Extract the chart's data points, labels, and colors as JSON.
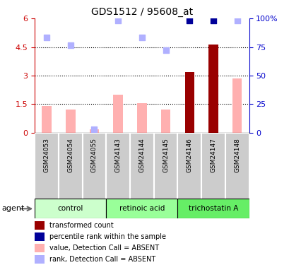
{
  "title": "GDS1512 / 95608_at",
  "samples": [
    "GSM24053",
    "GSM24054",
    "GSM24055",
    "GSM24143",
    "GSM24144",
    "GSM24145",
    "GSM24146",
    "GSM24147",
    "GSM24148"
  ],
  "groups": [
    {
      "name": "control",
      "color": "#ccffcc",
      "start": 0,
      "end": 3
    },
    {
      "name": "retinoic acid",
      "color": "#99ff99",
      "start": 3,
      "end": 6
    },
    {
      "name": "trichostatin A",
      "color": "#66ee66",
      "start": 6,
      "end": 9
    }
  ],
  "bar_values": [
    1.4,
    1.2,
    0.15,
    2.0,
    1.55,
    1.2,
    3.2,
    4.65,
    2.85
  ],
  "bar_colors": [
    "#ffb0b0",
    "#ffb0b0",
    "#ffb0b0",
    "#ffb0b0",
    "#ffb0b0",
    "#ffb0b0",
    "#990000",
    "#990000",
    "#ffb0b0"
  ],
  "dot_values_left_scale": [
    5.0,
    4.6,
    0.15,
    5.9,
    5.0,
    4.35,
    5.9,
    5.9,
    5.9
  ],
  "dot_colors": [
    "#b0b0ff",
    "#b0b0ff",
    "#b0b0ff",
    "#b0b0ff",
    "#b0b0ff",
    "#b0b0ff",
    "#000099",
    "#000099",
    "#b0b0ff"
  ],
  "ylim_left": [
    0,
    6
  ],
  "ylim_right": [
    0,
    100
  ],
  "yticks_left": [
    0,
    1.5,
    3.0,
    4.5,
    6.0
  ],
  "yticks_right": [
    0,
    25,
    50,
    75,
    100
  ],
  "hlines": [
    1.5,
    3.0,
    4.5
  ],
  "legend_items": [
    {
      "color": "#990000",
      "label": "transformed count"
    },
    {
      "color": "#000099",
      "label": "percentile rank within the sample"
    },
    {
      "color": "#ffb0b0",
      "label": "value, Detection Call = ABSENT"
    },
    {
      "color": "#b0b0ff",
      "label": "rank, Detection Call = ABSENT"
    }
  ],
  "agent_label": "agent",
  "title_color": "#000000",
  "left_axis_color": "#cc0000",
  "right_axis_color": "#0000cc",
  "bar_width": 0.4,
  "dot_size": 30,
  "sample_box_color": "#cccccc",
  "sample_box_edge_color": "#ffffff"
}
